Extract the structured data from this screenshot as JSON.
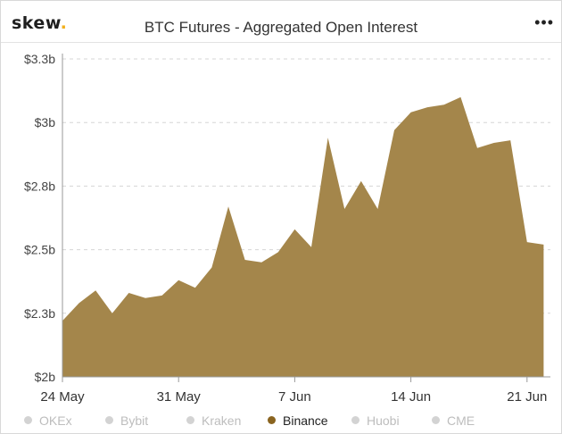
{
  "header": {
    "logo_text": "skew",
    "logo_dot": ".",
    "title": "BTC Futures - Aggregated Open Interest",
    "menu_icon": "more-horizontal-icon",
    "menu_glyph": "•••"
  },
  "colors": {
    "area": "#a4864b",
    "axis": "#999999",
    "grid": "#d6d6d6",
    "inactive_legend": "#cfcfcf"
  },
  "legend": [
    {
      "label": "OKEx",
      "color": "#d3d3d3",
      "active": false
    },
    {
      "label": "Bybit",
      "color": "#d3d3d3",
      "active": false
    },
    {
      "label": "Kraken",
      "color": "#d3d3d3",
      "active": false
    },
    {
      "label": "Binance",
      "color": "#8a6420",
      "active": true
    },
    {
      "label": "Huobi",
      "color": "#d3d3d3",
      "active": false
    },
    {
      "label": "CME",
      "color": "#d3d3d3",
      "active": false
    }
  ],
  "chart_data": {
    "type": "area",
    "title": "BTC Futures - Aggregated Open Interest",
    "series": [
      {
        "name": "Binance",
        "x": [
          "2020-05-24",
          "2020-05-25",
          "2020-05-26",
          "2020-05-27",
          "2020-05-28",
          "2020-05-29",
          "2020-05-30",
          "2020-05-31",
          "2020-06-01",
          "2020-06-02",
          "2020-06-03",
          "2020-06-04",
          "2020-06-05",
          "2020-06-06",
          "2020-06-07",
          "2020-06-08",
          "2020-06-09",
          "2020-06-10",
          "2020-06-11",
          "2020-06-12",
          "2020-06-13",
          "2020-06-14",
          "2020-06-15",
          "2020-06-16",
          "2020-06-17",
          "2020-06-18",
          "2020-06-19",
          "2020-06-20",
          "2020-06-21",
          "2020-06-22"
        ],
        "values": [
          2.22,
          2.29,
          2.34,
          2.25,
          2.33,
          2.31,
          2.32,
          2.38,
          2.35,
          2.43,
          2.67,
          2.46,
          2.45,
          2.49,
          2.58,
          2.51,
          2.94,
          2.66,
          2.77,
          2.66,
          2.97,
          3.04,
          3.06,
          3.07,
          3.1,
          2.9,
          2.92,
          2.93,
          2.53,
          2.52
        ]
      }
    ],
    "x_ticks": [
      "24 May",
      "31 May",
      "7 Jun",
      "14 Jun",
      "21 Jun"
    ],
    "x_tick_dates": [
      "2020-05-24",
      "2020-05-31",
      "2020-06-07",
      "2020-06-14",
      "2020-06-21"
    ],
    "y_ticks": [
      2.0,
      2.25,
      2.5,
      2.75,
      3.0,
      3.25
    ],
    "y_tick_labels": [
      "$2b",
      "$2.3b",
      "$2.5b",
      "$2.8b",
      "$3b",
      "$3.3b"
    ],
    "ylim": [
      2.0,
      3.25
    ],
    "xlabel": "",
    "ylabel": "",
    "grid": "horizontal dashed",
    "legend_position": "bottom"
  }
}
